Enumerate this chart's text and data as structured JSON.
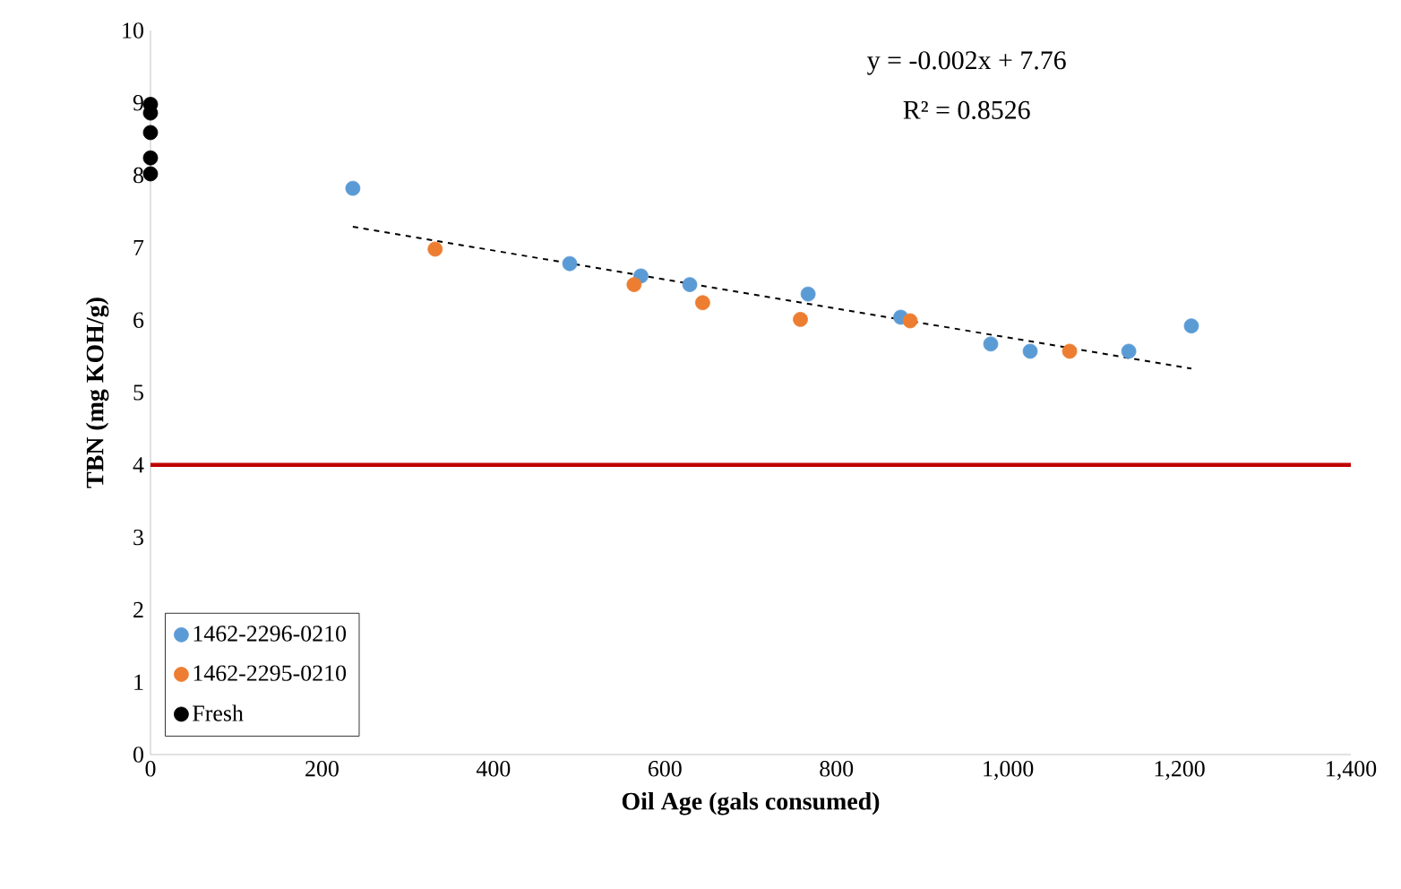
{
  "chart_data": {
    "type": "scatter",
    "xlabel": "Oil Age (gals consumed)",
    "ylabel": "TBN (mg KOH/g)",
    "xlim": [
      0,
      1400
    ],
    "ylim": [
      0,
      10
    ],
    "xticks": [
      0,
      200,
      400,
      600,
      800,
      {
        "value": 1000,
        "label": "1,000"
      },
      {
        "value": 1200,
        "label": "1,200"
      },
      {
        "value": 1400,
        "label": "1,400"
      }
    ],
    "yticks": [
      0,
      1,
      2,
      3,
      4,
      5,
      6,
      7,
      8,
      9,
      10
    ],
    "grid": false,
    "legend": "bottom left",
    "series": [
      {
        "name": "1462-2296-0210",
        "color": "#5b9bd5",
        "marker": "circle",
        "x": [
          236,
          489,
          572,
          629,
          767,
          875,
          980,
          1026,
          1141,
          1214
        ],
        "values": [
          7.82,
          6.78,
          6.61,
          6.49,
          6.36,
          6.04,
          5.67,
          5.57,
          5.57,
          5.92
        ]
      },
      {
        "name": "1462-2295-0210",
        "color": "#ed7d31",
        "marker": "circle",
        "x": [
          332,
          564,
          644,
          758,
          886,
          1072
        ],
        "values": [
          6.98,
          6.49,
          6.24,
          6.01,
          5.99,
          5.57
        ]
      },
      {
        "name": "Fresh",
        "color": "#000000",
        "marker": "circle",
        "x": [
          0,
          0,
          0,
          0,
          0
        ],
        "values": [
          8.98,
          8.86,
          8.59,
          8.24,
          8.02
        ]
      },
      {
        "type": "line",
        "color": "#000000",
        "line_style": "dashed",
        "marker": "none",
        "x": [
          236,
          1214
        ],
        "values": [
          7.29,
          5.33
        ]
      }
    ],
    "ref_lines": [
      {
        "axis": "y",
        "value": 4,
        "color": "#c00000"
      }
    ],
    "annotations": [
      "y = -0.002x + 7.76",
      "R² = 0.8526"
    ]
  }
}
